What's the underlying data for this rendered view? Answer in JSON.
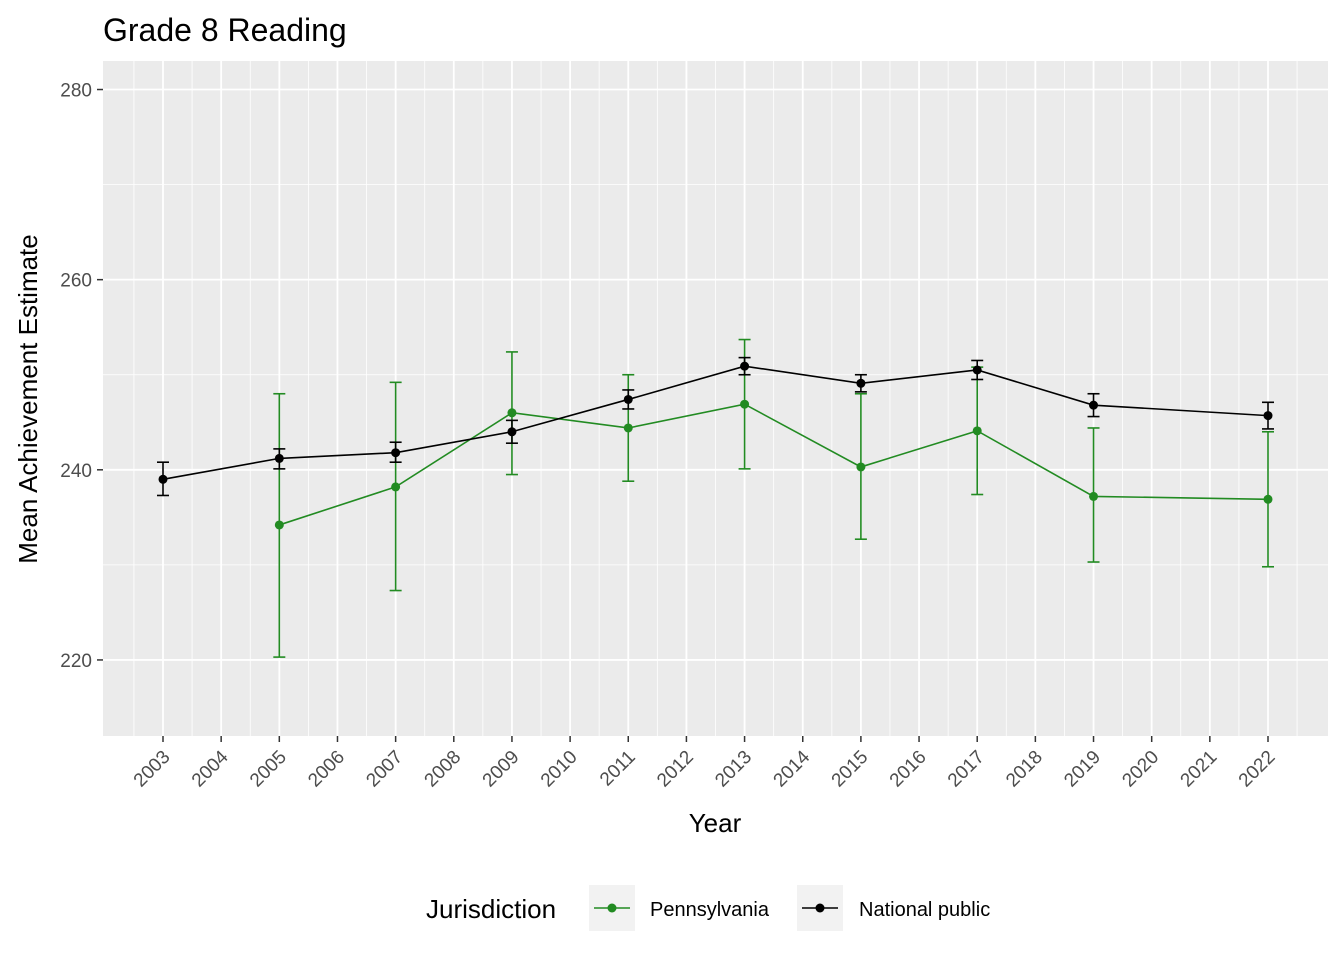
{
  "chart_data": {
    "type": "line",
    "title": "Grade 8 Reading",
    "xlabel": "Year",
    "ylabel": "Mean Achievement Estimate",
    "ylim": [
      212,
      283
    ],
    "y_ticks": [
      220,
      240,
      260,
      280
    ],
    "x_tick_labels": [
      "2003",
      "2004",
      "2005",
      "2006",
      "2007",
      "2008",
      "2009",
      "2010",
      "2011",
      "2012",
      "2013",
      "2014",
      "2015",
      "2016",
      "2017",
      "2018",
      "2019",
      "2020",
      "2021",
      "2022"
    ],
    "grid": true,
    "legend": {
      "title": "Jurisdiction",
      "placement": "bottom",
      "entries": [
        "Pennsylvania",
        "National public"
      ]
    },
    "series": [
      {
        "name": "Pennsylvania",
        "color": "#228B22",
        "x": [
          "2005",
          "2007",
          "2009",
          "2011",
          "2013",
          "2015",
          "2017",
          "2019",
          "2022"
        ],
        "values": [
          234.2,
          238.2,
          246.0,
          244.4,
          246.9,
          240.3,
          244.1,
          237.2,
          236.9
        ],
        "lower": [
          220.3,
          227.3,
          239.5,
          238.8,
          240.1,
          232.7,
          237.4,
          230.3,
          229.8
        ],
        "upper": [
          248.0,
          249.2,
          252.4,
          250.0,
          253.7,
          248.0,
          250.8,
          244.4,
          244.0
        ]
      },
      {
        "name": "National public",
        "color": "#000000",
        "x": [
          "2003",
          "2005",
          "2007",
          "2009",
          "2011",
          "2013",
          "2015",
          "2017",
          "2019",
          "2022"
        ],
        "values": [
          239.0,
          241.2,
          241.8,
          244.0,
          247.4,
          250.9,
          249.1,
          250.5,
          246.8,
          245.7
        ],
        "lower": [
          237.3,
          240.1,
          240.8,
          242.8,
          246.4,
          250.0,
          248.2,
          249.5,
          245.6,
          244.3
        ],
        "upper": [
          240.8,
          242.2,
          242.9,
          245.2,
          248.4,
          251.8,
          250.0,
          251.5,
          248.0,
          247.1
        ]
      }
    ]
  }
}
